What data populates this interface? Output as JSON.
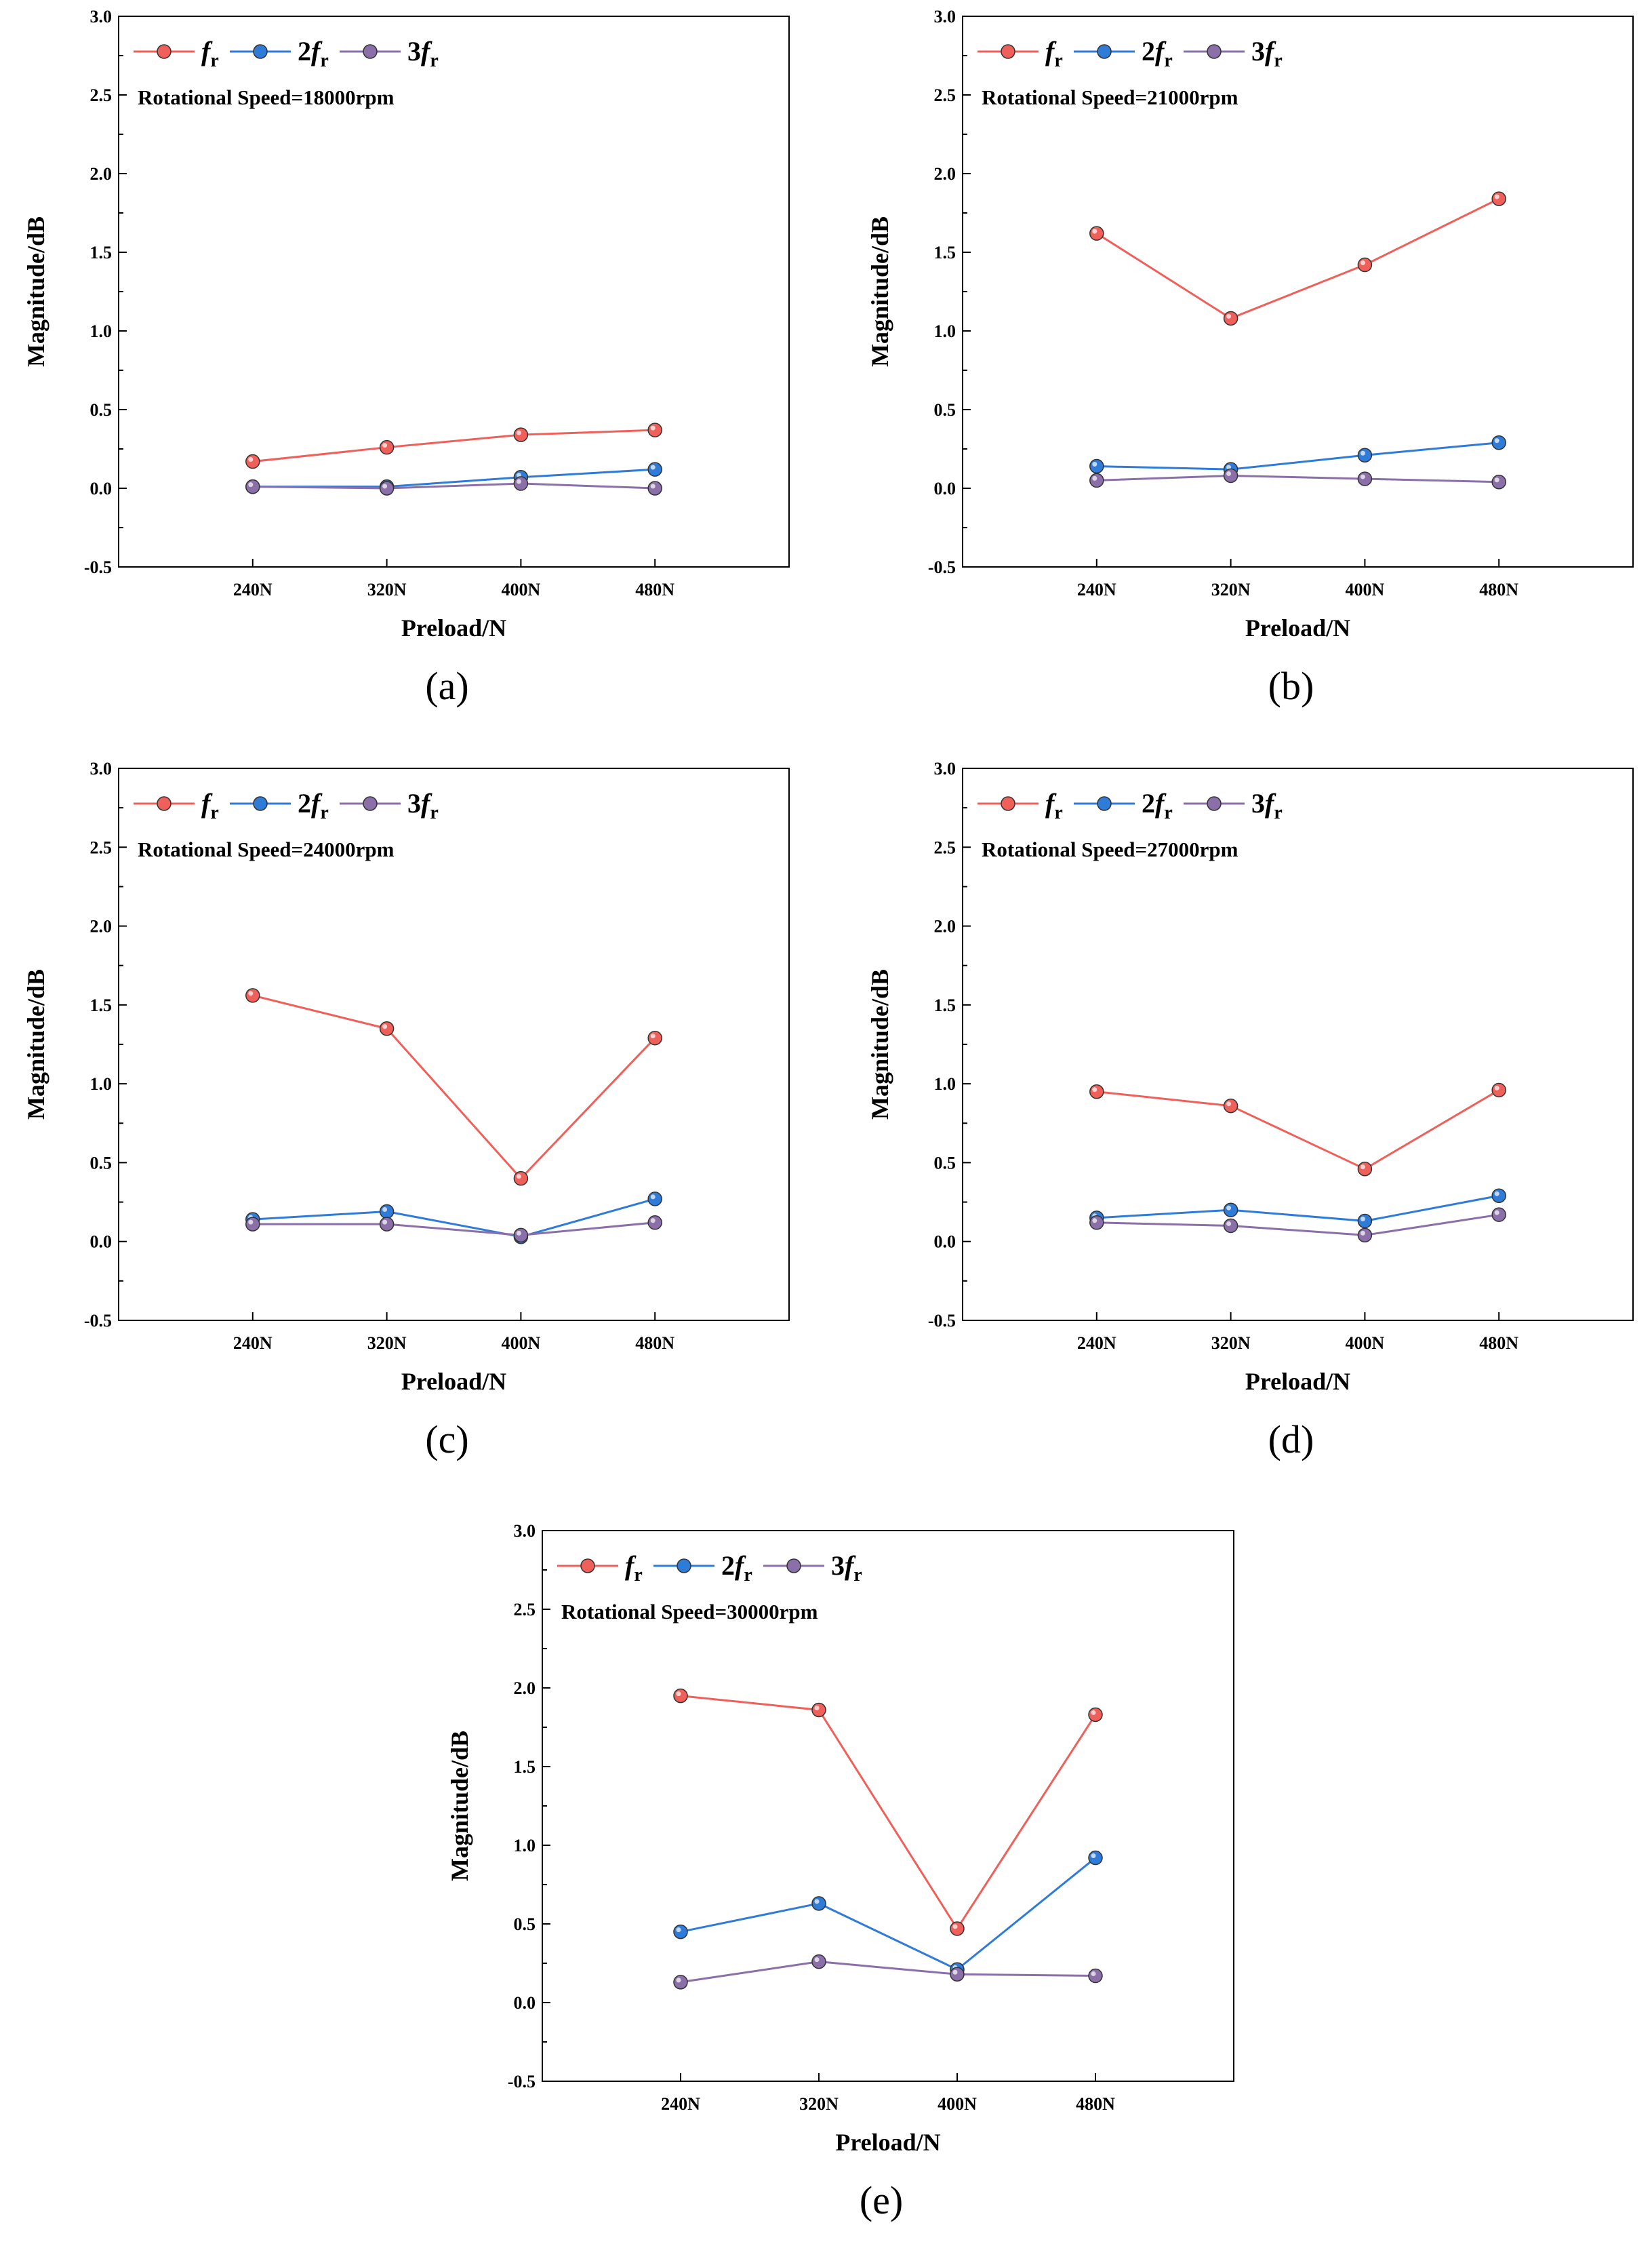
{
  "chart_data": [
    {
      "type": "line",
      "caption": "(a)",
      "annotation": "Rotational Speed=18000rpm",
      "xlabel": "Preload/N",
      "ylabel": "Magnitude/dB",
      "categories": [
        "240N",
        "320N",
        "400N",
        "480N"
      ],
      "ylim": [
        -0.5,
        3.0
      ],
      "yticks": [
        "-0.5",
        "0.0",
        "0.5",
        "1.0",
        "1.5",
        "2.0",
        "2.5",
        "3.0"
      ],
      "legend_position": "top-left",
      "grid": false,
      "series": [
        {
          "name": "f_r",
          "color": "#f0605a",
          "values": [
            0.17,
            0.26,
            0.34,
            0.37
          ]
        },
        {
          "name": "2f_r",
          "color": "#2f7bd8",
          "values": [
            0.01,
            0.01,
            0.07,
            0.12
          ]
        },
        {
          "name": "3f_r",
          "color": "#8a6fa8",
          "values": [
            0.01,
            0.0,
            0.03,
            0.0
          ]
        }
      ]
    },
    {
      "type": "line",
      "caption": "(b)",
      "annotation": "Rotational Speed=21000rpm",
      "xlabel": "Preload/N",
      "ylabel": "Magnitude/dB",
      "categories": [
        "240N",
        "320N",
        "400N",
        "480N"
      ],
      "ylim": [
        -0.5,
        3.0
      ],
      "yticks": [
        "-0.5",
        "0.0",
        "0.5",
        "1.0",
        "1.5",
        "2.0",
        "2.5",
        "3.0"
      ],
      "legend_position": "top-left",
      "grid": false,
      "series": [
        {
          "name": "f_r",
          "color": "#f0605a",
          "values": [
            1.62,
            1.08,
            1.42,
            1.84
          ]
        },
        {
          "name": "2f_r",
          "color": "#2f7bd8",
          "values": [
            0.14,
            0.12,
            0.21,
            0.29
          ]
        },
        {
          "name": "3f_r",
          "color": "#8a6fa8",
          "values": [
            0.05,
            0.08,
            0.06,
            0.04
          ]
        }
      ]
    },
    {
      "type": "line",
      "caption": "(c)",
      "annotation": "Rotational Speed=24000rpm",
      "xlabel": "Preload/N",
      "ylabel": "Magnitude/dB",
      "categories": [
        "240N",
        "320N",
        "400N",
        "480N"
      ],
      "ylim": [
        -0.5,
        3.0
      ],
      "yticks": [
        "-0.5",
        "0.0",
        "0.5",
        "1.0",
        "1.5",
        "2.0",
        "2.5",
        "3.0"
      ],
      "legend_position": "top-left",
      "grid": false,
      "series": [
        {
          "name": "f_r",
          "color": "#f0605a",
          "values": [
            1.56,
            1.35,
            0.4,
            1.29
          ]
        },
        {
          "name": "2f_r",
          "color": "#2f7bd8",
          "values": [
            0.14,
            0.19,
            0.03,
            0.27
          ]
        },
        {
          "name": "3f_r",
          "color": "#8a6fa8",
          "values": [
            0.11,
            0.11,
            0.04,
            0.12
          ]
        }
      ]
    },
    {
      "type": "line",
      "caption": "(d)",
      "annotation": "Rotational Speed=27000rpm",
      "xlabel": "Preload/N",
      "ylabel": "Magnitude/dB",
      "categories": [
        "240N",
        "320N",
        "400N",
        "480N"
      ],
      "ylim": [
        -0.5,
        3.0
      ],
      "yticks": [
        "-0.5",
        "0.0",
        "0.5",
        "1.0",
        "1.5",
        "2.0",
        "2.5",
        "3.0"
      ],
      "legend_position": "top-left",
      "grid": false,
      "series": [
        {
          "name": "f_r",
          "color": "#f0605a",
          "values": [
            0.95,
            0.86,
            0.46,
            0.96
          ]
        },
        {
          "name": "2f_r",
          "color": "#2f7bd8",
          "values": [
            0.15,
            0.2,
            0.13,
            0.29
          ]
        },
        {
          "name": "3f_r",
          "color": "#8a6fa8",
          "values": [
            0.12,
            0.1,
            0.04,
            0.17
          ]
        }
      ]
    },
    {
      "type": "line",
      "caption": "(e)",
      "annotation": "Rotational Speed=30000rpm",
      "xlabel": "Preload/N",
      "ylabel": "Magnitude/dB",
      "categories": [
        "240N",
        "320N",
        "400N",
        "480N"
      ],
      "ylim": [
        -0.5,
        3.0
      ],
      "yticks": [
        "-0.5",
        "0.0",
        "0.5",
        "1.0",
        "1.5",
        "2.0",
        "2.5",
        "3.0"
      ],
      "legend_position": "top-left",
      "grid": false,
      "series": [
        {
          "name": "f_r",
          "color": "#f0605a",
          "values": [
            1.95,
            1.86,
            0.47,
            1.83
          ]
        },
        {
          "name": "2f_r",
          "color": "#2f7bd8",
          "values": [
            0.45,
            0.63,
            0.21,
            0.92
          ]
        },
        {
          "name": "3f_r",
          "color": "#8a6fa8",
          "values": [
            0.13,
            0.26,
            0.18,
            0.17
          ]
        }
      ]
    }
  ]
}
